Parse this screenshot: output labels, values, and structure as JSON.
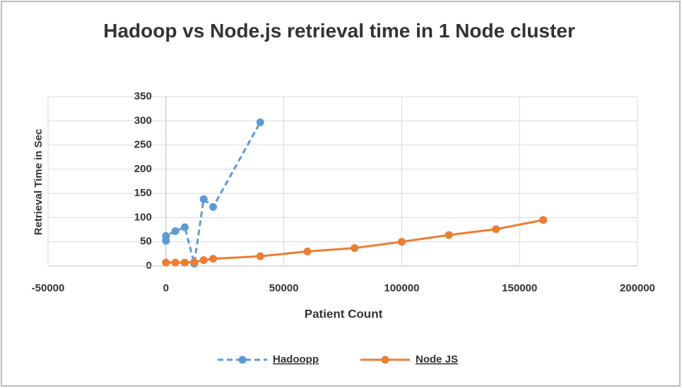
{
  "chart_data": {
    "type": "line",
    "title": "Hadoop vs Node.js retrieval time in 1 Node cluster",
    "xlabel": "Patient Count",
    "ylabel": "Retrieval Time in Sec",
    "xlim": [
      -50000,
      200000
    ],
    "xticks": [
      -50000,
      0,
      50000,
      100000,
      150000,
      200000
    ],
    "ylim": [
      0,
      350
    ],
    "yticks": [
      0,
      50,
      100,
      150,
      200,
      250,
      300,
      350
    ],
    "grid": true,
    "legend": "bottom",
    "series": [
      {
        "name": "Hadoopp",
        "color": "#5b9bd5",
        "dashed": true,
        "x": [
          0,
          0,
          4000,
          8000,
          12000,
          16000,
          20000,
          40000
        ],
        "values": [
          52,
          62,
          72,
          80,
          5,
          138,
          122,
          297
        ]
      },
      {
        "name": "Node JS",
        "color": "#ed7d31",
        "dashed": false,
        "x": [
          0,
          4000,
          8000,
          12000,
          16000,
          20000,
          40000,
          60000,
          80000,
          100000,
          120000,
          140000,
          160000
        ],
        "values": [
          7,
          7,
          7,
          8,
          12,
          15,
          20,
          30,
          37,
          50,
          64,
          76,
          95
        ]
      }
    ]
  }
}
